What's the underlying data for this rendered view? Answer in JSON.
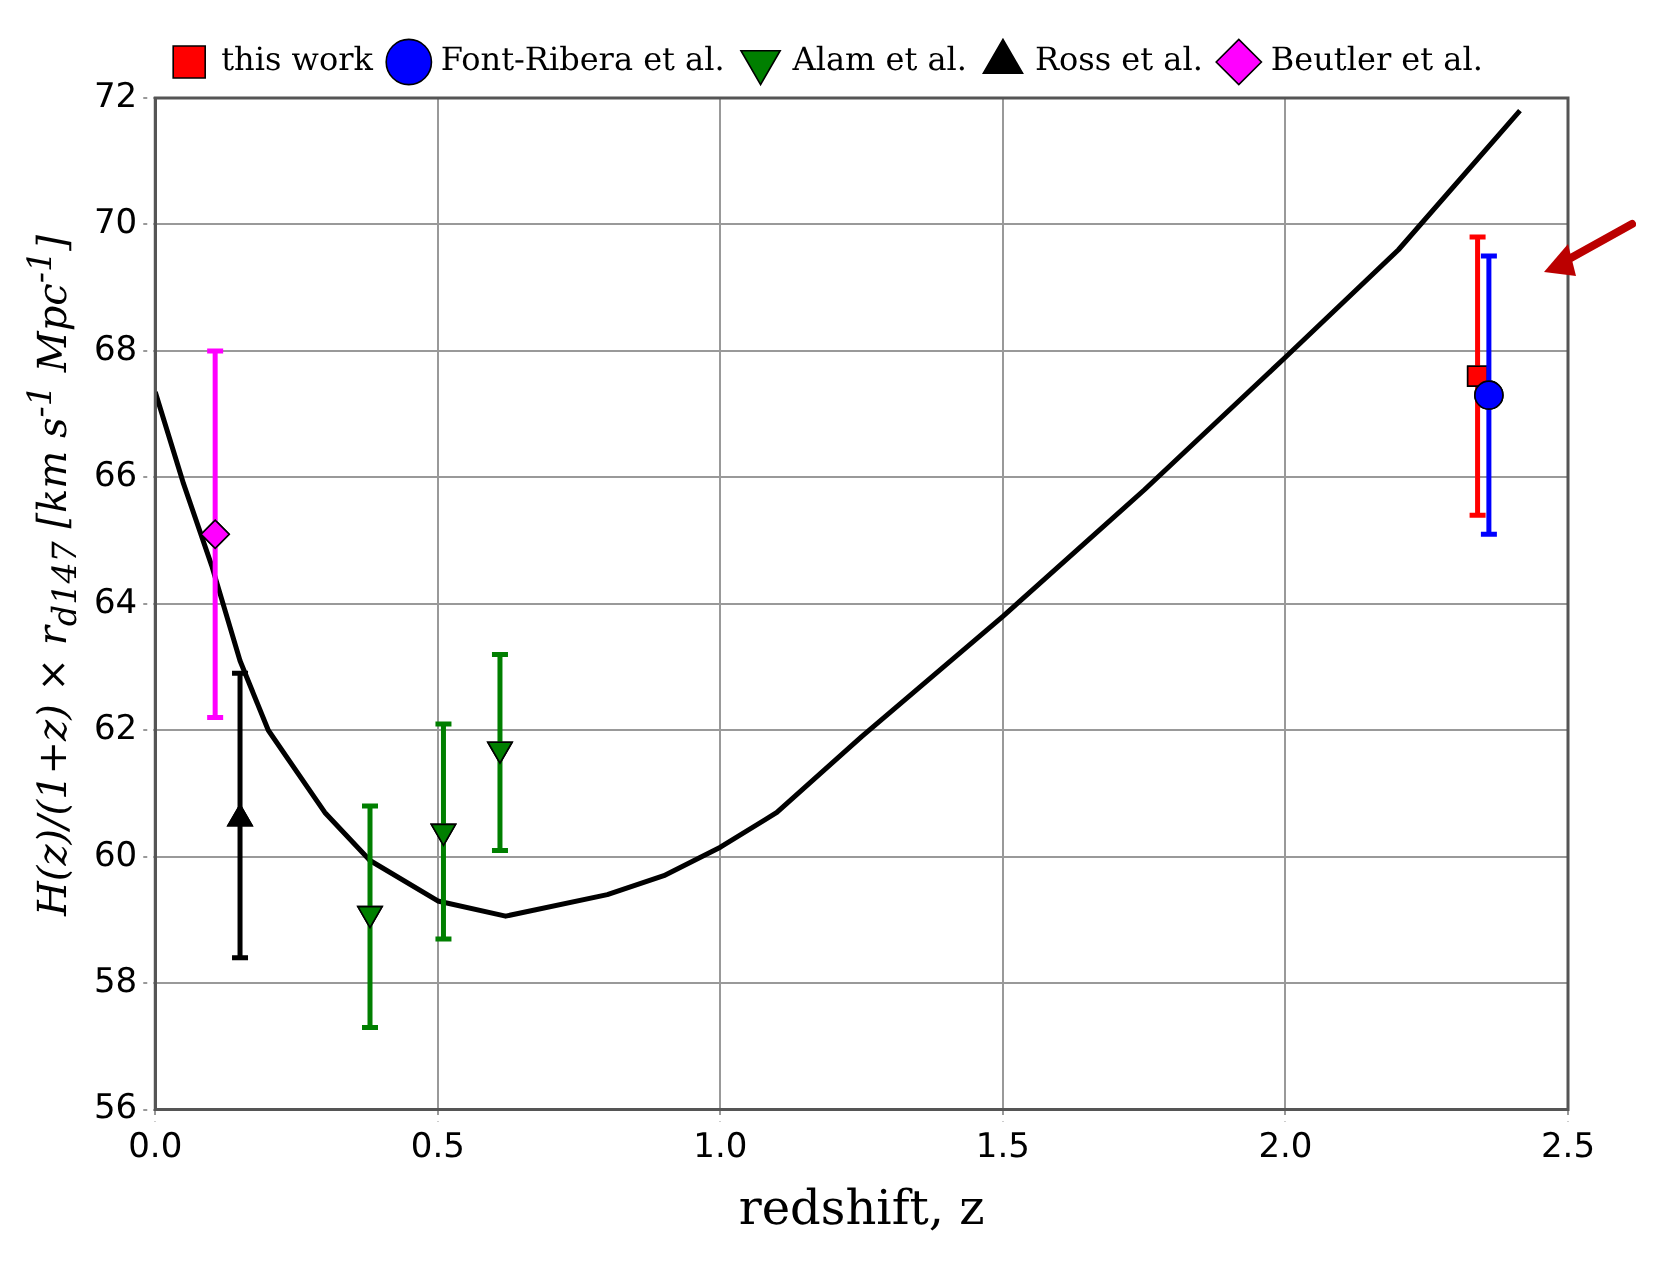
{
  "chart_data": {
    "type": "scatter",
    "xlabel": "redshift, z",
    "ylabel": "H(z)/(1+z) × r$_{d147}$ [km s$^{-1}$ Mpc$^{-1}$]",
    "xlim": [
      0,
      2.5
    ],
    "xticks": [
      {
        "value": 0,
        "label": "0.0"
      },
      {
        "value": 0.5,
        "label": "0.5"
      },
      {
        "value": 1,
        "label": "1.0"
      },
      {
        "value": 1.5,
        "label": "1.5"
      },
      {
        "value": 2,
        "label": "2.0"
      },
      {
        "value": 2.5,
        "label": "2.5"
      }
    ],
    "ylim": [
      56,
      72
    ],
    "yticks": [
      56,
      58,
      60,
      62,
      64,
      66,
      68,
      70,
      72
    ],
    "grid": true,
    "legend": "top",
    "series": [
      {
        "name": "this work",
        "color": "#ff0000",
        "marker": "square",
        "x": [
          2.34
        ],
        "values": [
          67.6
        ],
        "errors": [
          [
            65.4,
            69.8
          ]
        ]
      },
      {
        "name": "Font-Ribera et al.",
        "color": "#0000ff",
        "marker": "circle",
        "x": [
          2.36
        ],
        "values": [
          67.3
        ],
        "errors": [
          [
            65.1,
            69.5
          ]
        ]
      },
      {
        "name": "Alam et al.",
        "color": "#007f00",
        "marker": "triangle-down",
        "x": [
          0.38,
          0.51,
          0.61
        ],
        "values": [
          59.1,
          60.4,
          61.7
        ],
        "errors": [
          [
            57.3,
            60.8
          ],
          [
            58.7,
            62.1
          ],
          [
            60.1,
            63.2
          ]
        ]
      },
      {
        "name": "Ross et al.",
        "color": "#000000",
        "marker": "triangle",
        "x": [
          0.15
        ],
        "values": [
          60.6
        ],
        "errors": [
          [
            58.4,
            62.9
          ]
        ]
      },
      {
        "name": "Beutler et al.",
        "color": "#ff00ff",
        "marker": "diamond",
        "x": [
          0.106
        ],
        "values": [
          65.1
        ],
        "errors": [
          [
            62.2,
            68.0
          ]
        ]
      },
      {
        "type": "line",
        "color": "#000000",
        "marker": "none",
        "x": [
          0,
          0.05,
          0.1,
          0.15,
          0.2,
          0.3,
          0.38,
          0.5,
          0.62,
          0.8,
          0.9,
          1.0,
          1.1,
          1.25,
          1.5,
          1.75,
          2.0,
          2.2,
          2.415
        ],
        "values": [
          67.35,
          65.9,
          64.6,
          63.1,
          62.0,
          60.7,
          59.94,
          59.3,
          59.06,
          59.4,
          59.7,
          60.15,
          60.7,
          61.9,
          63.8,
          65.8,
          67.9,
          69.6,
          71.8
        ]
      }
    ]
  }
}
